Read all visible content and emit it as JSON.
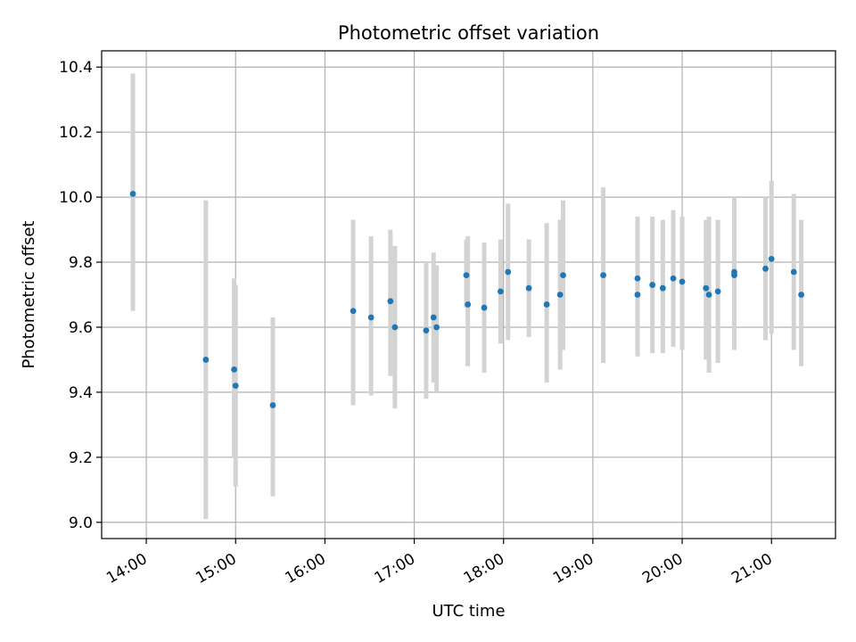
{
  "chart_data": {
    "type": "scatter",
    "title": "Photometric offset variation",
    "xlabel": "UTC time",
    "ylabel": "Photometric offset",
    "x_unit": "time",
    "xlim": [
      "13:30",
      "21:43"
    ],
    "ylim": [
      8.95,
      10.45
    ],
    "x_ticks": [
      "14:00",
      "15:00",
      "16:00",
      "17:00",
      "18:00",
      "19:00",
      "20:00",
      "21:00"
    ],
    "y_ticks": [
      "9.0",
      "9.2",
      "9.4",
      "9.6",
      "9.8",
      "10.0",
      "10.2",
      "10.4"
    ],
    "grid": true,
    "series": [
      {
        "marker_color": "#1f77b4",
        "errorbar_color": "#d3d3d3",
        "points": [
          {
            "x": "13:51",
            "y": 10.01,
            "ylow": 9.65,
            "yhigh": 10.38
          },
          {
            "x": "14:40",
            "y": 9.5,
            "ylow": 9.01,
            "yhigh": 9.99
          },
          {
            "x": "14:59",
            "y": 9.47,
            "ylow": 9.2,
            "yhigh": 9.75
          },
          {
            "x": "15:00",
            "y": 9.42,
            "ylow": 9.11,
            "yhigh": 9.73
          },
          {
            "x": "15:25",
            "y": 9.36,
            "ylow": 9.08,
            "yhigh": 9.63
          },
          {
            "x": "16:19",
            "y": 9.65,
            "ylow": 9.36,
            "yhigh": 9.93
          },
          {
            "x": "16:31",
            "y": 9.63,
            "ylow": 9.39,
            "yhigh": 9.88
          },
          {
            "x": "16:44",
            "y": 9.68,
            "ylow": 9.45,
            "yhigh": 9.9
          },
          {
            "x": "16:47",
            "y": 9.6,
            "ylow": 9.35,
            "yhigh": 9.85
          },
          {
            "x": "17:08",
            "y": 9.59,
            "ylow": 9.38,
            "yhigh": 9.8
          },
          {
            "x": "17:13",
            "y": 9.63,
            "ylow": 9.43,
            "yhigh": 9.83
          },
          {
            "x": "17:15",
            "y": 9.6,
            "ylow": 9.4,
            "yhigh": 9.79
          },
          {
            "x": "17:35",
            "y": 9.76,
            "ylow": 9.66,
            "yhigh": 9.87
          },
          {
            "x": "17:36",
            "y": 9.67,
            "ylow": 9.48,
            "yhigh": 9.88
          },
          {
            "x": "17:47",
            "y": 9.66,
            "ylow": 9.46,
            "yhigh": 9.86
          },
          {
            "x": "17:58",
            "y": 9.71,
            "ylow": 9.55,
            "yhigh": 9.87
          },
          {
            "x": "18:03",
            "y": 9.77,
            "ylow": 9.56,
            "yhigh": 9.98
          },
          {
            "x": "18:17",
            "y": 9.72,
            "ylow": 9.57,
            "yhigh": 9.87
          },
          {
            "x": "18:29",
            "y": 9.67,
            "ylow": 9.43,
            "yhigh": 9.92
          },
          {
            "x": "18:38",
            "y": 9.7,
            "ylow": 9.47,
            "yhigh": 9.93
          },
          {
            "x": "18:40",
            "y": 9.76,
            "ylow": 9.53,
            "yhigh": 9.99
          },
          {
            "x": "19:07",
            "y": 9.76,
            "ylow": 9.49,
            "yhigh": 10.03
          },
          {
            "x": "19:30",
            "y": 9.75,
            "ylow": 9.56,
            "yhigh": 9.94
          },
          {
            "x": "19:30",
            "y": 9.7,
            "ylow": 9.51,
            "yhigh": 9.89
          },
          {
            "x": "19:40",
            "y": 9.73,
            "ylow": 9.52,
            "yhigh": 9.94
          },
          {
            "x": "19:47",
            "y": 9.72,
            "ylow": 9.52,
            "yhigh": 9.93
          },
          {
            "x": "19:54",
            "y": 9.75,
            "ylow": 9.54,
            "yhigh": 9.96
          },
          {
            "x": "20:00",
            "y": 9.74,
            "ylow": 9.53,
            "yhigh": 9.94
          },
          {
            "x": "20:16",
            "y": 9.72,
            "ylow": 9.5,
            "yhigh": 9.93
          },
          {
            "x": "20:18",
            "y": 9.7,
            "ylow": 9.46,
            "yhigh": 9.94
          },
          {
            "x": "20:24",
            "y": 9.71,
            "ylow": 9.49,
            "yhigh": 9.93
          },
          {
            "x": "20:35",
            "y": 9.76,
            "ylow": 9.53,
            "yhigh": 9.99
          },
          {
            "x": "20:35",
            "y": 9.77,
            "ylow": 9.55,
            "yhigh": 10.0
          },
          {
            "x": "20:56",
            "y": 9.78,
            "ylow": 9.56,
            "yhigh": 10.0
          },
          {
            "x": "21:00",
            "y": 9.81,
            "ylow": 9.58,
            "yhigh": 10.05
          },
          {
            "x": "21:15",
            "y": 9.77,
            "ylow": 9.53,
            "yhigh": 10.01
          },
          {
            "x": "21:20",
            "y": 9.7,
            "ylow": 9.48,
            "yhigh": 9.93
          }
        ]
      }
    ]
  }
}
